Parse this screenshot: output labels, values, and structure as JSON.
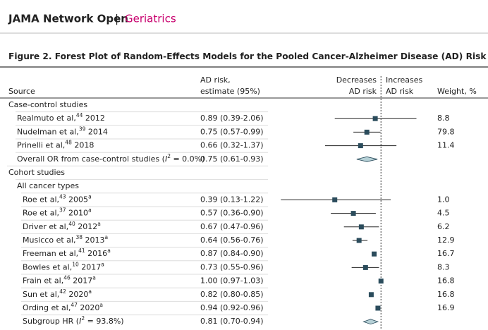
{
  "header": {
    "journal": "JAMA Network Open",
    "separator": "|",
    "section": "Geriatrics"
  },
  "figure": {
    "title": "Figure 2. Forest Plot of Random-Effects Models for the Pooled Cancer-Alzheimer Disease (AD) Risk Estimates",
    "title_note": "a",
    "columns": {
      "source": "Source",
      "estimate": [
        "AD risk,",
        "estimate (95%)"
      ],
      "decreases": [
        "Decreases",
        "AD risk"
      ],
      "increases": [
        "Increases",
        "AD risk"
      ],
      "weight": "Weight, %"
    },
    "plot": {
      "log_scale": true,
      "xlim": [
        0.1,
        2.5
      ],
      "reference_line": 1,
      "marker_color": "#2b4c5c",
      "diamond_color": "#b5d0d6"
    },
    "rows": [
      {
        "kind": "group",
        "indent": 0,
        "label": [
          {
            "t": "Case-control studies"
          }
        ]
      },
      {
        "kind": "study",
        "indent": 1,
        "label": [
          {
            "t": "Realmuto et al,"
          },
          {
            "t": "44",
            "sup": true
          },
          {
            "t": " 2012"
          }
        ],
        "estimate": 0.89,
        "low": 0.39,
        "high": 2.06,
        "ci_text": "0.89 (0.39-2.06)",
        "weight": "8.8"
      },
      {
        "kind": "study",
        "indent": 1,
        "label": [
          {
            "t": "Nudelman et al,"
          },
          {
            "t": "39",
            "sup": true
          },
          {
            "t": "  2014"
          }
        ],
        "estimate": 0.75,
        "low": 0.57,
        "high": 0.99,
        "ci_text": "0.75 (0.57-0.99)",
        "weight": "79.8"
      },
      {
        "kind": "study",
        "indent": 1,
        "label": [
          {
            "t": "Prinelli et al,"
          },
          {
            "t": "48",
            "sup": true
          },
          {
            "t": " 2018"
          }
        ],
        "estimate": 0.66,
        "low": 0.32,
        "high": 1.37,
        "ci_text": "0.66 (0.32-1.37)",
        "weight": "11.4"
      },
      {
        "kind": "pooled",
        "indent": 1,
        "label": [
          {
            "t": "Overall OR from case-control studies ("
          },
          {
            "t": "I",
            "italic": true
          },
          {
            "t": "2",
            "sup": true
          },
          {
            "t": " = 0.0%)"
          }
        ],
        "estimate": 0.75,
        "low": 0.61,
        "high": 0.93,
        "ci_text": "0.75 (0.61-0.93)"
      },
      {
        "kind": "group",
        "indent": 0,
        "label": [
          {
            "t": "Cohort studies"
          }
        ]
      },
      {
        "kind": "group",
        "indent": 1,
        "label": [
          {
            "t": "All cancer types"
          }
        ]
      },
      {
        "kind": "study",
        "indent": 2,
        "label": [
          {
            "t": "Roe et al,"
          },
          {
            "t": "43",
            "sup": true
          },
          {
            "t": " 2005"
          },
          {
            "t": "a",
            "sup": true
          }
        ],
        "estimate": 0.39,
        "low": 0.13,
        "high": 1.22,
        "ci_text": "0.39 (0.13-1.22)",
        "weight": "1.0"
      },
      {
        "kind": "study",
        "indent": 2,
        "label": [
          {
            "t": "Roe et al,"
          },
          {
            "t": "37",
            "sup": true
          },
          {
            "t": " 2010"
          },
          {
            "t": "a",
            "sup": true
          }
        ],
        "estimate": 0.57,
        "low": 0.36,
        "high": 0.9,
        "ci_text": "0.57 (0.36-0.90)",
        "weight": "4.5"
      },
      {
        "kind": "study",
        "indent": 2,
        "label": [
          {
            "t": "Driver et al,"
          },
          {
            "t": "40",
            "sup": true
          },
          {
            "t": " 2012"
          },
          {
            "t": "a",
            "sup": true
          }
        ],
        "estimate": 0.67,
        "low": 0.47,
        "high": 0.96,
        "ci_text": "0.67 (0.47-0.96)",
        "weight": "6.2"
      },
      {
        "kind": "study",
        "indent": 2,
        "label": [
          {
            "t": "Musicco et al,"
          },
          {
            "t": "38",
            "sup": true
          },
          {
            "t": " 2013"
          },
          {
            "t": "a",
            "sup": true
          }
        ],
        "estimate": 0.64,
        "low": 0.56,
        "high": 0.76,
        "ci_text": "0.64 (0.56-0.76)",
        "weight": "12.9"
      },
      {
        "kind": "study",
        "indent": 2,
        "label": [
          {
            "t": "Freeman et al,"
          },
          {
            "t": "41",
            "sup": true
          },
          {
            "t": " 2016"
          },
          {
            "t": "a",
            "sup": true
          }
        ],
        "estimate": 0.87,
        "low": 0.84,
        "high": 0.9,
        "ci_text": "0.87 (0.84-0.90)",
        "weight": "16.7"
      },
      {
        "kind": "study",
        "indent": 2,
        "label": [
          {
            "t": "Bowles et al,"
          },
          {
            "t": "10",
            "sup": true
          },
          {
            "t": " 2017"
          },
          {
            "t": "a",
            "sup": true
          }
        ],
        "estimate": 0.73,
        "low": 0.55,
        "high": 0.96,
        "ci_text": "0.73 (0.55-0.96)",
        "weight": "8.3"
      },
      {
        "kind": "study",
        "indent": 2,
        "label": [
          {
            "t": "Frain et al,"
          },
          {
            "t": "46",
            "sup": true
          },
          {
            "t": " 2017"
          },
          {
            "t": "a",
            "sup": true
          }
        ],
        "estimate": 1.0,
        "low": 0.97,
        "high": 1.03,
        "ci_text": "1.00 (0.97-1.03)",
        "weight": "16.8"
      },
      {
        "kind": "study",
        "indent": 2,
        "label": [
          {
            "t": "Sun et al,"
          },
          {
            "t": "42",
            "sup": true
          },
          {
            "t": " 2020"
          },
          {
            "t": "a",
            "sup": true
          }
        ],
        "estimate": 0.82,
        "low": 0.8,
        "high": 0.85,
        "ci_text": "0.82 (0.80-0.85)",
        "weight": "16.8"
      },
      {
        "kind": "study",
        "indent": 2,
        "label": [
          {
            "t": "Ording et al,"
          },
          {
            "t": "47",
            "sup": true
          },
          {
            "t": " 2020"
          },
          {
            "t": "a",
            "sup": true
          }
        ],
        "estimate": 0.94,
        "low": 0.92,
        "high": 0.96,
        "ci_text": "0.94 (0.92-0.96)",
        "weight": "16.9"
      },
      {
        "kind": "pooled",
        "indent": 2,
        "label": [
          {
            "t": "Subgroup HR ("
          },
          {
            "t": "I",
            "italic": true
          },
          {
            "t": "2",
            "sup": true
          },
          {
            "t": " = 93.8%)"
          }
        ],
        "estimate": 0.81,
        "low": 0.7,
        "high": 0.94,
        "ci_text": "0.81 (0.70-0.94)"
      }
    ]
  }
}
